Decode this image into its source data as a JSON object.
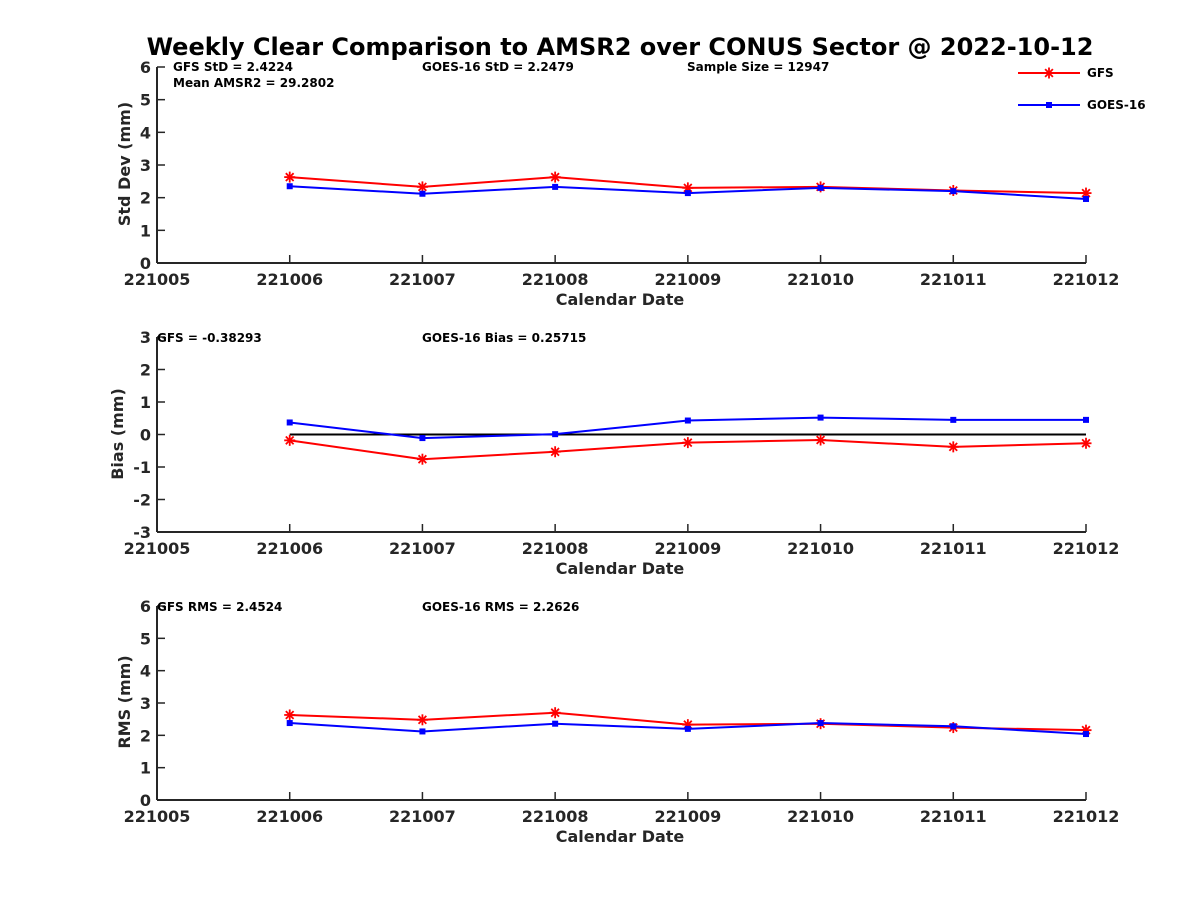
{
  "title": "Weekly Clear Comparison to AMSR2 over CONUS Sector @ 2022-10-12",
  "legend": [
    {
      "name": "GFS",
      "color": "#ff0000",
      "marker": "asterisk"
    },
    {
      "name": "GOES-16",
      "color": "#0000ff",
      "marker": "square"
    }
  ],
  "colors": {
    "gfs": "#ff0000",
    "goes16": "#0000ff",
    "zero_line": "#000000",
    "axis": "#262626"
  },
  "chart_data": [
    {
      "type": "line",
      "xlabel": "Calendar Date",
      "ylabel": "Std Dev (mm)",
      "x_ticks": [
        "221005",
        "221006",
        "221007",
        "221008",
        "221009",
        "221010",
        "221011",
        "221012"
      ],
      "ylim": [
        0,
        6
      ],
      "y_ticks": [
        "0",
        "1",
        "2",
        "3",
        "4",
        "5",
        "6"
      ],
      "grid": false,
      "legend_position": "top-right",
      "annotations": [
        "GFS StD = 2.4224",
        "Mean AMSR2 = 29.2802",
        "GOES-16 StD = 2.2479",
        "Sample Size = 12947"
      ],
      "x": [
        "221006",
        "221007",
        "221008",
        "221009",
        "221010",
        "221011",
        "221012"
      ],
      "series": [
        {
          "name": "GFS",
          "values": [
            2.63,
            2.33,
            2.63,
            2.3,
            2.33,
            2.22,
            2.14
          ]
        },
        {
          "name": "GOES-16",
          "values": [
            2.35,
            2.12,
            2.33,
            2.14,
            2.3,
            2.2,
            1.96
          ]
        }
      ]
    },
    {
      "type": "line",
      "xlabel": "Calendar Date",
      "ylabel": "Bias (mm)",
      "x_ticks": [
        "221005",
        "221006",
        "221007",
        "221008",
        "221009",
        "221010",
        "221011",
        "221012"
      ],
      "ylim": [
        -3,
        3
      ],
      "y_ticks": [
        "-3",
        "-2",
        "-1",
        "0",
        "1",
        "2",
        "3"
      ],
      "grid": false,
      "zero_line": true,
      "annotations": [
        "GFS = -0.38293",
        "GOES-16 Bias  = 0.25715"
      ],
      "x": [
        "221006",
        "221007",
        "221008",
        "221009",
        "221010",
        "221011",
        "221012"
      ],
      "series": [
        {
          "name": "GFS",
          "values": [
            -0.18,
            -0.76,
            -0.53,
            -0.25,
            -0.17,
            -0.38,
            -0.27
          ]
        },
        {
          "name": "GOES-16",
          "values": [
            0.37,
            -0.11,
            0.01,
            0.43,
            0.52,
            0.45,
            0.45
          ]
        }
      ]
    },
    {
      "type": "line",
      "xlabel": "Calendar Date",
      "ylabel": "RMS (mm)",
      "x_ticks": [
        "221005",
        "221006",
        "221007",
        "221008",
        "221009",
        "221010",
        "221011",
        "221012"
      ],
      "ylim": [
        0,
        6
      ],
      "y_ticks": [
        "0",
        "1",
        "2",
        "3",
        "4",
        "5",
        "6"
      ],
      "grid": false,
      "annotations": [
        "GFS RMS = 2.4524",
        "GOES-16 RMS = 2.2626"
      ],
      "x": [
        "221006",
        "221007",
        "221008",
        "221009",
        "221010",
        "221011",
        "221012"
      ],
      "series": [
        {
          "name": "GFS",
          "values": [
            2.63,
            2.48,
            2.7,
            2.33,
            2.36,
            2.24,
            2.16
          ]
        },
        {
          "name": "GOES-16",
          "values": [
            2.38,
            2.12,
            2.36,
            2.2,
            2.38,
            2.28,
            2.04
          ]
        }
      ]
    }
  ]
}
